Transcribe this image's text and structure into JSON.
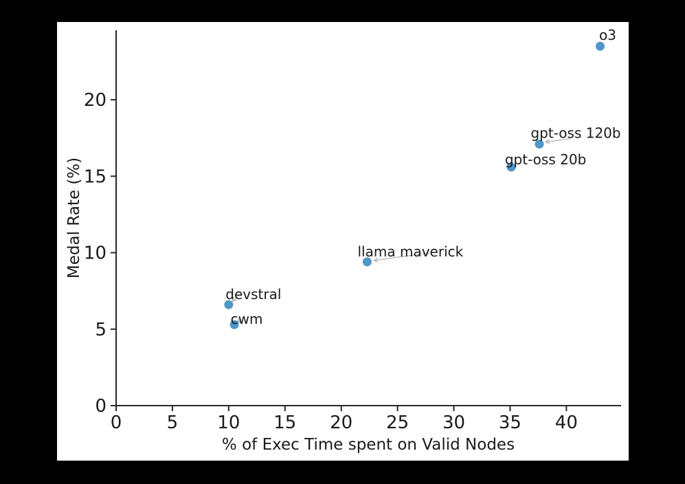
{
  "figure": {
    "background": "#000000",
    "panel_background": "#ffffff"
  },
  "chart_data": {
    "type": "scatter",
    "title": "",
    "xlabel": "% of Exec Time spent on Valid Nodes",
    "ylabel": "Medal Rate (%)",
    "xlim": [
      0,
      44.8
    ],
    "ylim": [
      0,
      24.5
    ],
    "xticks": [
      0,
      5,
      10,
      15,
      20,
      25,
      30,
      35,
      40
    ],
    "yticks": [
      0,
      5,
      10,
      15,
      20
    ],
    "grid": false,
    "legend_position": "none",
    "style": {
      "point_color": "#4f97c7",
      "point_radius": 6.5,
      "axis_color": "#262626",
      "text_color": "#1a1a1a",
      "leader_color": "#b3b3b3"
    },
    "points": [
      {
        "label": "o3",
        "x": 43.0,
        "y": 23.5,
        "label_offset": [
          11,
          -16
        ],
        "leader": null
      },
      {
        "label": "gpt-oss 120b",
        "x": 37.6,
        "y": 17.1,
        "label_offset": [
          53,
          -16
        ],
        "leader": {
          "tail": [
            45,
            -8
          ],
          "head": [
            9,
            -3
          ]
        }
      },
      {
        "label": "gpt-oss 20b",
        "x": 35.1,
        "y": 15.6,
        "label_offset": [
          50,
          -11
        ],
        "leader": null
      },
      {
        "label": "llama maverick",
        "x": 22.3,
        "y": 9.4,
        "label_offset": [
          63,
          -15
        ],
        "leader": {
          "tail": [
            91,
            -13
          ],
          "head": [
            10,
            -2
          ]
        }
      },
      {
        "label": "devstral",
        "x": 10.0,
        "y": 6.6,
        "label_offset": [
          36,
          -15
        ],
        "leader": {
          "tail": [
            14,
            -13
          ],
          "head": [
            5,
            -5
          ]
        }
      },
      {
        "label": "cwm",
        "x": 10.5,
        "y": 5.3,
        "label_offset": [
          18,
          -8
        ],
        "leader": {
          "tail": [
            10,
            -8
          ],
          "head": [
            4,
            -3
          ]
        }
      }
    ]
  }
}
